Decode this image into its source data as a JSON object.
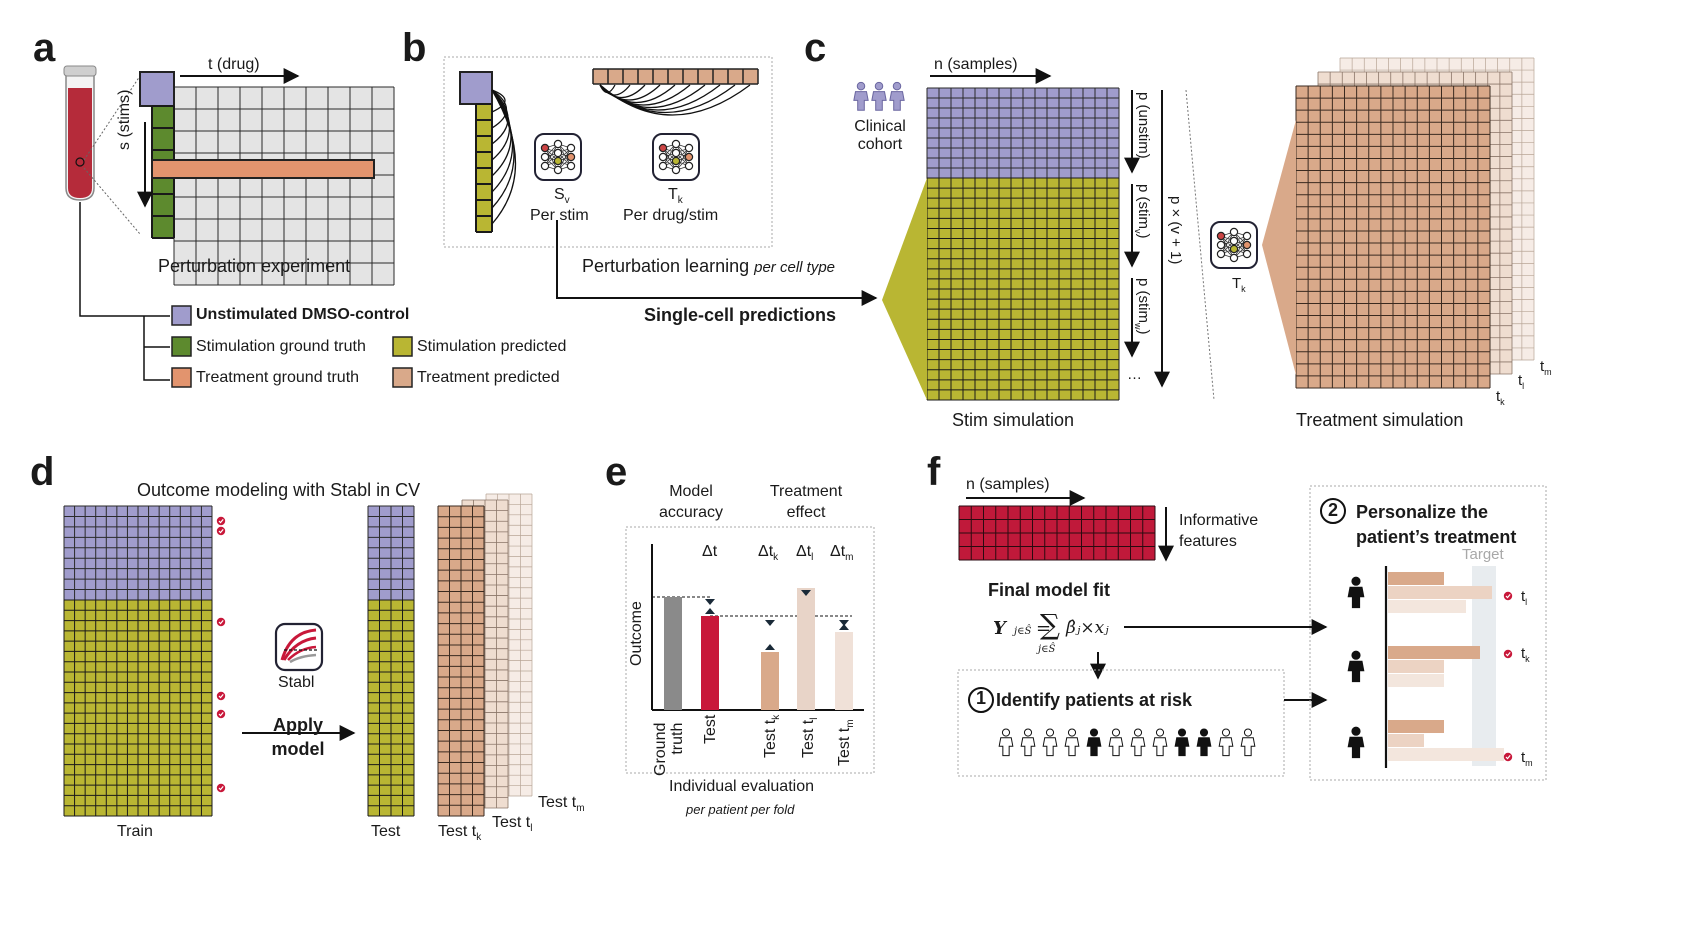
{
  "panels": {
    "a": "a",
    "b": "b",
    "c": "c",
    "d": "d",
    "e": "e",
    "f": "f"
  },
  "colors": {
    "lavender": "#a09ccc",
    "olive_green": "#5d8a2e",
    "yellow_green": "#b9b633",
    "salmon": "#e2946e",
    "peach": "#d9a98a",
    "light_peach": "#e8d4c8",
    "crimson": "#c0193a",
    "blood": "#b52b3a",
    "cell_gray": "#e4e4e4",
    "test_gray": "#8a8a8a",
    "test_red": "#c8183a"
  },
  "icons": [
    "blood-tube-icon",
    "neural-net-icon",
    "person-icon",
    "stabl-icon",
    "check-circle-icon",
    "numbered-circle-icon"
  ],
  "panel_a": {
    "axis_t": "t (drug)",
    "axis_s": "s (stims)",
    "caption": "Perturbation experiment",
    "legend": {
      "unstim": "Unstimulated DMSO-control",
      "stim_gt": "Stimulation ground truth",
      "stim_pred": "Stimulation predicted",
      "treat_gt": "Treatment ground truth",
      "treat_pred": "Treatment predicted"
    }
  },
  "panel_b": {
    "sv_base": "S",
    "sv_sub": "v",
    "sv_label": "Per stim",
    "tk_base": "T",
    "tk_sub": "k",
    "tk_label": "Per drug/stim",
    "caption": "Perturbation learning",
    "caption_italic": "per cell type",
    "arrow_label": "Single-cell predictions"
  },
  "panel_c": {
    "axis_n": "n (samples)",
    "cohort": "Clinical\ncohort",
    "p_unstim": "p (unstim)",
    "p_stim_v_base": "p (stim",
    "p_stim_v_sub": "v",
    "p_stim_w_base": "p (stim",
    "p_stim_w_sub": "w",
    "p_close": ")",
    "ellipsis": "…",
    "p_total": "p × (v + 1)",
    "model_base": "T",
    "model_sub": "k",
    "stack_labels": [
      {
        "base": "t",
        "sub": "k"
      },
      {
        "base": "t",
        "sub": "l"
      },
      {
        "base": "t",
        "sub": "m"
      }
    ],
    "caption_stim": "Stim simulation",
    "caption_treat": "Treatment simulation"
  },
  "panel_d": {
    "title": "Outcome modeling with Stabl in CV",
    "stabl_label": "Stabl",
    "apply_label": "Apply\nmodel",
    "train": "Train",
    "test": "Test",
    "test_k": {
      "base": "Test t",
      "sub": "k"
    },
    "test_l": {
      "base": "Test t",
      "sub": "l"
    },
    "test_m": {
      "base": "Test t",
      "sub": "m"
    }
  },
  "panel_e": {
    "head_left": "Model\naccuracy",
    "head_right": "Treatment\neffect",
    "delta": [
      {
        "base": "Δt",
        "sub": ""
      },
      {
        "base": "Δt",
        "sub": "k"
      },
      {
        "base": "Δt",
        "sub": "l"
      },
      {
        "base": "Δt",
        "sub": "m"
      }
    ],
    "ylabel": "Outcome",
    "bars": [
      {
        "label": "Ground\ntruth",
        "sub": ""
      },
      {
        "label": "Test",
        "sub": ""
      },
      {
        "label": "Test t",
        "sub": "k"
      },
      {
        "label": "Test t",
        "sub": "l"
      },
      {
        "label": "Test t",
        "sub": "m"
      }
    ],
    "caption": "Individual evaluation",
    "caption_italic": "per patient per fold"
  },
  "panel_f": {
    "axis_n": "n (samples)",
    "features": "Informative\nfeatures",
    "fit_title": "Final model fit",
    "formula_lhs": "Y",
    "formula_sum": "∑",
    "formula_sub": "j∈Ŝ",
    "formula_rhs": "β̂ⱼ×xⱼ",
    "step1_num": "1",
    "step1": "Identify patients at risk",
    "step2_num": "2",
    "step2": "Personalize the\npatient’s treatment",
    "target": "Target",
    "tags": [
      {
        "base": "t",
        "sub": "l"
      },
      {
        "base": "t",
        "sub": "k"
      },
      {
        "base": "t",
        "sub": "m"
      }
    ]
  }
}
